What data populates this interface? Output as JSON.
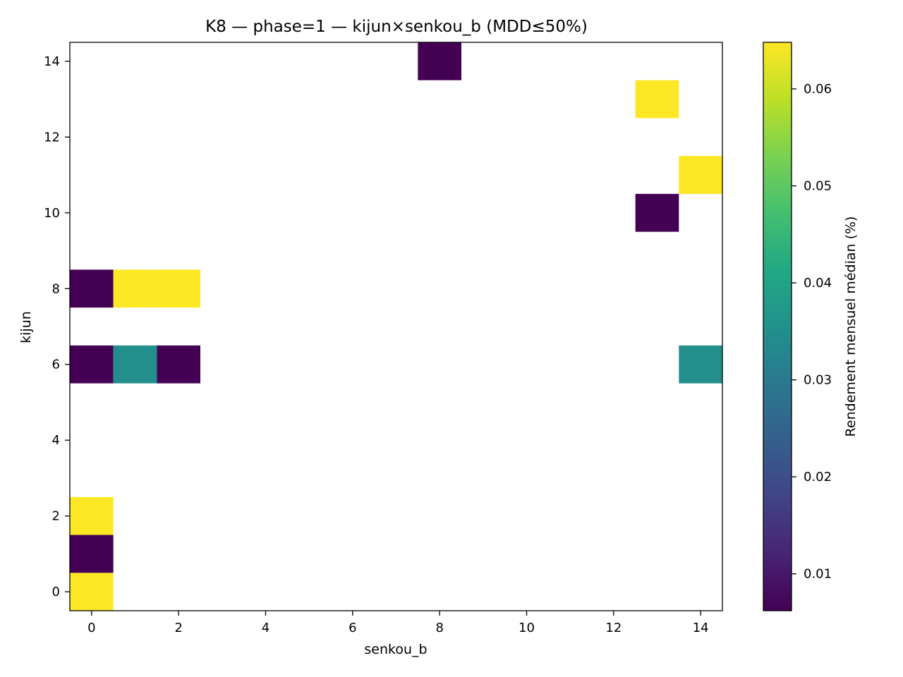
{
  "chart_data": {
    "type": "heatmap",
    "title": "K8 — phase=1 — kijun×senkou_b (MDD≤50%)",
    "xlabel": "senkou_b",
    "ylabel": "kijun",
    "xlim": [
      -0.5,
      14.5
    ],
    "ylim": [
      -0.5,
      14.5
    ],
    "xticks": [
      0,
      2,
      4,
      6,
      8,
      10,
      12,
      14
    ],
    "yticks": [
      0,
      2,
      4,
      6,
      8,
      10,
      12,
      14
    ],
    "grid": false,
    "colormap": "viridis",
    "colorbar": {
      "label": "Rendement mensuel médian (%)",
      "range": [
        0.0062,
        0.0648
      ],
      "ticks": [
        0.01,
        0.02,
        0.03,
        0.04,
        0.05,
        0.06
      ],
      "tick_labels": [
        "0.01",
        "0.02",
        "0.03",
        "0.04",
        "0.05",
        "0.06"
      ]
    },
    "cells": [
      {
        "x": 0,
        "y": 0,
        "value": 0.0648
      },
      {
        "x": 0,
        "y": 1,
        "value": 0.0062
      },
      {
        "x": 0,
        "y": 2,
        "value": 0.0648
      },
      {
        "x": 0,
        "y": 6,
        "value": 0.0062
      },
      {
        "x": 1,
        "y": 6,
        "value": 0.035
      },
      {
        "x": 2,
        "y": 6,
        "value": 0.0062
      },
      {
        "x": 14,
        "y": 6,
        "value": 0.035
      },
      {
        "x": 0,
        "y": 8,
        "value": 0.0062
      },
      {
        "x": 1,
        "y": 8,
        "value": 0.0648
      },
      {
        "x": 2,
        "y": 8,
        "value": 0.0648
      },
      {
        "x": 13,
        "y": 10,
        "value": 0.0062
      },
      {
        "x": 14,
        "y": 11,
        "value": 0.0648
      },
      {
        "x": 13,
        "y": 13,
        "value": 0.0648
      },
      {
        "x": 8,
        "y": 14,
        "value": 0.0062
      }
    ]
  }
}
